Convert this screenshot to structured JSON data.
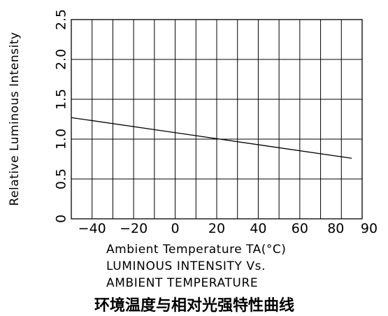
{
  "chart_data": {
    "type": "line",
    "ylabel": "Relative Luminous Intensity",
    "xlabel": "Ambient Temperature TA(°C)",
    "title_lines": [
      "LUMINOUS INTENSITY Vs.",
      "AMBIENT TEMPERATURE"
    ],
    "caption_cn": "环境温度与相对光强特性曲线",
    "xlim": [
      -50,
      90
    ],
    "ylim": [
      0,
      2.5
    ],
    "x_tick_labels": [
      {
        "value": -40,
        "label": "−40"
      },
      {
        "value": -20,
        "label": "−20"
      },
      {
        "value": 0,
        "label": "0"
      },
      {
        "value": 20,
        "label": "20"
      },
      {
        "value": 40,
        "label": "40"
      },
      {
        "value": 60,
        "label": "60"
      },
      {
        "value": 80,
        "label": "80"
      },
      {
        "value": 90,
        "label": "90"
      }
    ],
    "y_tick_labels": [
      {
        "value": 0,
        "label": "0"
      },
      {
        "value": 0.5,
        "label": "0.5"
      },
      {
        "value": 1.0,
        "label": "1.0"
      },
      {
        "value": 1.5,
        "label": "1.5"
      },
      {
        "value": 2.0,
        "label": "2.0"
      },
      {
        "value": 2.5,
        "label": "2.5"
      }
    ],
    "x_gridlines": [
      -40,
      -30,
      -20,
      -10,
      0,
      10,
      20,
      30,
      40,
      50,
      60,
      70,
      80
    ],
    "y_gridlines": [
      0.5,
      1.0,
      1.5,
      2.0
    ],
    "grid": true,
    "series": [
      {
        "x": [
          -50,
          85
        ],
        "y": [
          1.27,
          0.76
        ]
      }
    ],
    "line_color": "#000000"
  }
}
